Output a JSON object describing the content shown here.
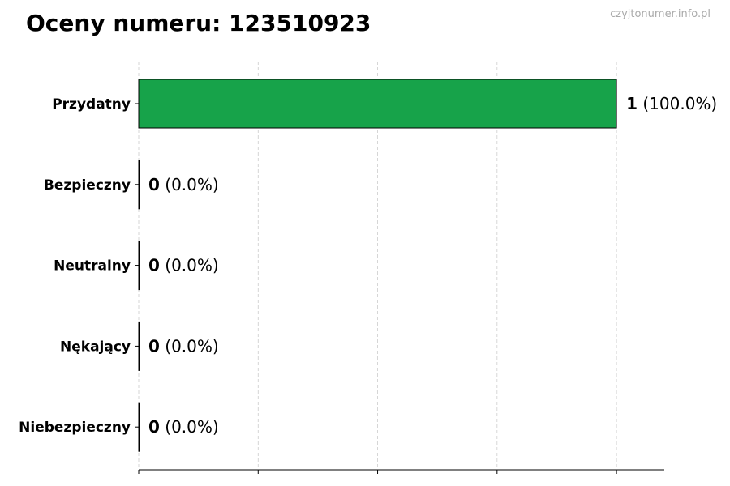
{
  "chart_data": {
    "type": "bar",
    "orientation": "horizontal",
    "title": "Oceny numeru: 123510923",
    "watermark": "czyjtonumer.info.pl",
    "categories": [
      "Przydatny",
      "Bezpieczny",
      "Neutralny",
      "Nękający",
      "Niebezpieczny"
    ],
    "values": [
      1,
      0,
      0,
      0,
      0
    ],
    "labels": [
      {
        "count": "1",
        "pct": "(100.0%)"
      },
      {
        "count": "0",
        "pct": "(0.0%)"
      },
      {
        "count": "0",
        "pct": "(0.0%)"
      },
      {
        "count": "0",
        "pct": "(0.0%)"
      },
      {
        "count": "0",
        "pct": "(0.0%)"
      }
    ],
    "xlim": [
      0,
      1.1
    ],
    "xticks": [
      0,
      0.25,
      0.5,
      0.75,
      1
    ],
    "grid": "x-dashed",
    "bar_color": "#17a34a",
    "edge_color": "#000000"
  }
}
